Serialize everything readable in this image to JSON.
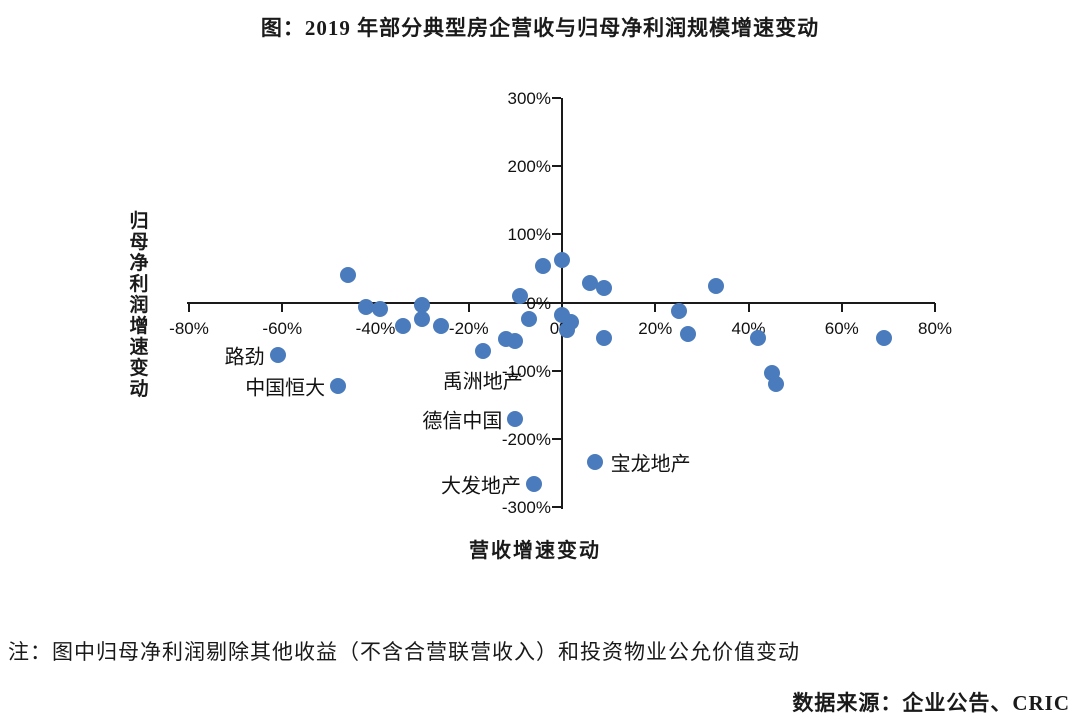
{
  "page": {
    "title": "图：2019 年部分典型房企营收与归母净利润规模增速变动",
    "note": "注：图中归母净利润剔除其他收益（不含合营联营收入）和投资物业公允价值变动",
    "source": "数据来源：企业公告、CRIC"
  },
  "chart_data": {
    "type": "scatter",
    "title": "图：2019 年部分典型房企营收与归母净利润规模增速变动",
    "xlabel": "营收增速变动",
    "ylabel": "归母净利润增速变动",
    "units": "percent",
    "xlim": [
      -80,
      80
    ],
    "ylim": [
      -300,
      300
    ],
    "grid": false,
    "legend": "none",
    "marker_color": "#4A7BBD",
    "axis_color": "#1a1a1a",
    "x_tick_values": [
      -80,
      -60,
      -40,
      -20,
      0,
      20,
      40,
      60,
      80
    ],
    "x_tick_labels": [
      "-80%",
      "-60%",
      "-40%",
      "-20%",
      "0%",
      "20%",
      "40%",
      "60%",
      "80%"
    ],
    "y_tick_values": [
      300,
      200,
      100,
      0,
      -100,
      -200,
      -300
    ],
    "y_tick_labels": [
      "300%",
      "200%",
      "100%",
      "0%",
      "-100%",
      "-200%",
      "-300%"
    ],
    "points": [
      {
        "x": -61,
        "y": -77,
        "label": "路劲",
        "label_side": "left"
      },
      {
        "x": -48,
        "y": -122,
        "label": "中国恒大",
        "label_side": "left"
      },
      {
        "x": -46,
        "y": 40
      },
      {
        "x": -42,
        "y": -6
      },
      {
        "x": -39,
        "y": -9
      },
      {
        "x": -34,
        "y": -35
      },
      {
        "x": -30,
        "y": -4
      },
      {
        "x": -30,
        "y": -24
      },
      {
        "x": -26,
        "y": -35
      },
      {
        "x": -17,
        "y": -71,
        "label": "禹洲地产",
        "label_side": "below"
      },
      {
        "x": -12,
        "y": -53
      },
      {
        "x": -10,
        "y": -57
      },
      {
        "x": -10,
        "y": -171,
        "label": "德信中国",
        "label_side": "left"
      },
      {
        "x": -9,
        "y": 9
      },
      {
        "x": -7,
        "y": -24
      },
      {
        "x": -6,
        "y": -266,
        "label": "大发地产",
        "label_side": "left"
      },
      {
        "x": -4,
        "y": 54
      },
      {
        "x": 0,
        "y": 63
      },
      {
        "x": 0,
        "y": -18
      },
      {
        "x": 2,
        "y": -28
      },
      {
        "x": 1,
        "y": -40
      },
      {
        "x": 6,
        "y": 28
      },
      {
        "x": 7,
        "y": -234,
        "label": "宝龙地产",
        "label_side": "right"
      },
      {
        "x": 9,
        "y": 22
      },
      {
        "x": 9,
        "y": -52
      },
      {
        "x": 25,
        "y": -12
      },
      {
        "x": 27,
        "y": -46
      },
      {
        "x": 33,
        "y": 24
      },
      {
        "x": 42,
        "y": -52
      },
      {
        "x": 45,
        "y": -104
      },
      {
        "x": 46,
        "y": -119
      },
      {
        "x": 69,
        "y": -52
      }
    ]
  }
}
